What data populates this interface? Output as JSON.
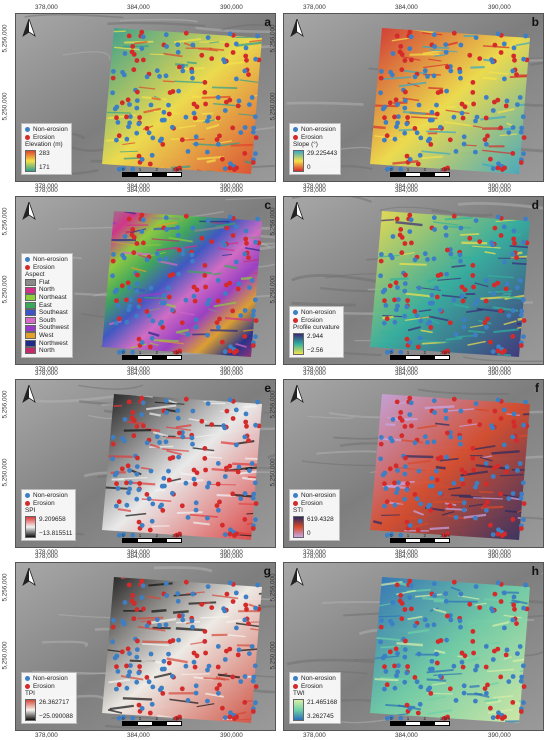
{
  "x_ticks": [
    "378,000",
    "384,000",
    "390,000"
  ],
  "y_ticks": [
    "5,256,000",
    "5,250,000"
  ],
  "legend_common": {
    "non_erosion": "Non-erosion",
    "erosion": "Erosion"
  },
  "colors": {
    "non_erosion": "#3d7fc4",
    "erosion": "#d42a2a"
  },
  "scalebar": {
    "labels": [
      "0",
      "1",
      "2",
      "3 km"
    ]
  },
  "panels": [
    {
      "id": "a",
      "label": "a",
      "factor": "Elevation (m)",
      "kind": "ramp",
      "max": "283",
      "min": "171",
      "ramp": [
        "#2e9e8f",
        "#f5e24a",
        "#e0452b"
      ]
    },
    {
      "id": "b",
      "label": "b",
      "factor": "Slope (°)",
      "kind": "ramp",
      "max": "29.225443",
      "min": "0",
      "ramp": [
        "#d62c2c",
        "#f5e24a",
        "#38a8c6"
      ]
    },
    {
      "id": "c",
      "label": "c",
      "factor": "Aspect",
      "kind": "classes",
      "classes": [
        {
          "name": "Flat",
          "color": "#8a8a8a"
        },
        {
          "name": "North",
          "color": "#d52d8a"
        },
        {
          "name": "Northeast",
          "color": "#8fcf3a"
        },
        {
          "name": "East",
          "color": "#3aa85a"
        },
        {
          "name": "Southeast",
          "color": "#3a55c8"
        },
        {
          "name": "South",
          "color": "#d86ac8"
        },
        {
          "name": "Southwest",
          "color": "#9a3ac8"
        },
        {
          "name": "West",
          "color": "#e2a02a"
        },
        {
          "name": "Northwest",
          "color": "#1f2a8a"
        },
        {
          "name": "North",
          "color": "#c42a6a"
        }
      ]
    },
    {
      "id": "d",
      "label": "d",
      "factor": "Profile curvature",
      "kind": "ramp",
      "max": "2.944",
      "min": "−2.56",
      "ramp": [
        "#f5e24a",
        "#32b0a0",
        "#3a2a78"
      ]
    },
    {
      "id": "e",
      "label": "e",
      "factor": "SPI",
      "kind": "ramp",
      "max": "9.209658",
      "min": "−13.815511",
      "ramp": [
        "#111111",
        "#f2f2f2",
        "#e03a3a"
      ]
    },
    {
      "id": "f",
      "label": "f",
      "factor": "STI",
      "kind": "ramp",
      "max": "619.4328",
      "min": "0",
      "ramp": [
        "#c7a8e8",
        "#d94a2a",
        "#2a2a60"
      ]
    },
    {
      "id": "g",
      "label": "g",
      "factor": "TPI",
      "kind": "ramp",
      "max": "26.362717",
      "min": "−25.090088",
      "ramp": [
        "#111111",
        "#f7f3ee",
        "#d44a3a"
      ]
    },
    {
      "id": "h",
      "label": "h",
      "factor": "TWI",
      "kind": "ramp",
      "max": "21.465168",
      "min": "3.262745",
      "ramp": [
        "#2a6fb8",
        "#6fd0a8",
        "#d8f0a8"
      ]
    }
  ]
}
